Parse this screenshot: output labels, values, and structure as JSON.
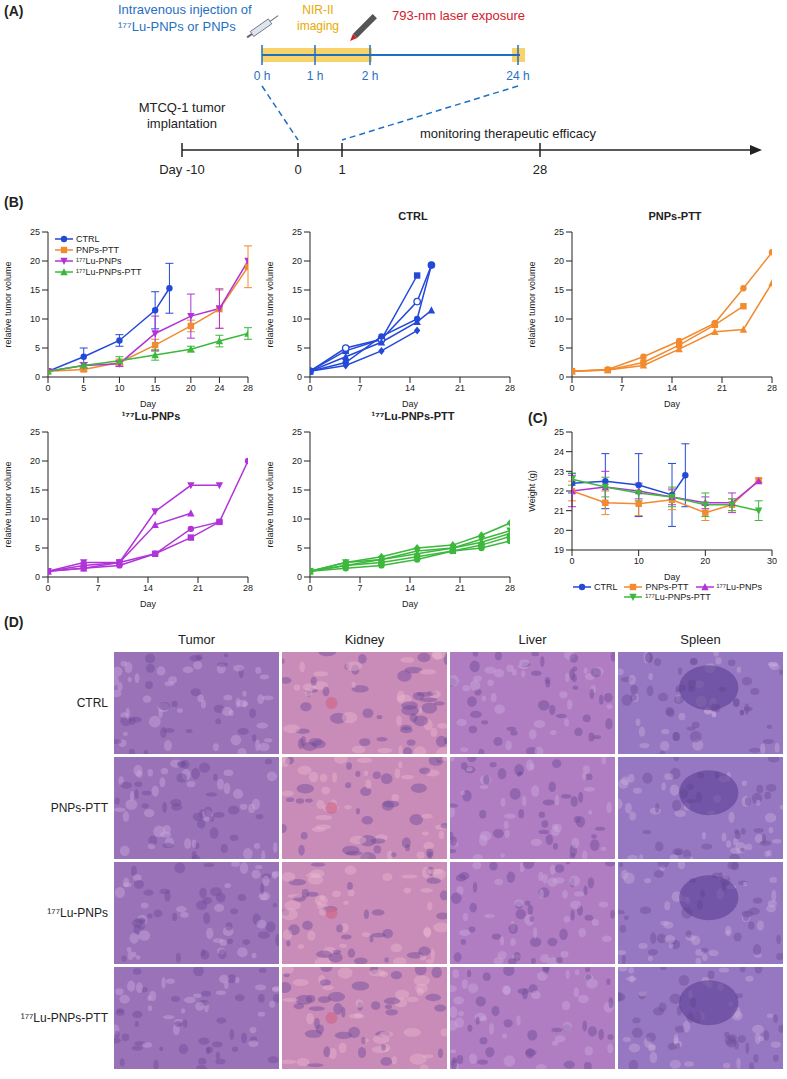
{
  "panel_labels": [
    "(A)",
    "(B)",
    "(C)",
    "(D)"
  ],
  "schematic": {
    "injection": [
      "Intravenous injection of",
      "¹⁷⁷Lu-PNPs or PNPs"
    ],
    "imaging": [
      "NIR-II",
      "imaging"
    ],
    "laser": "793-nm laser exposure",
    "hour_ticks": [
      "0 h",
      "1 h",
      "2 h",
      "24 h"
    ],
    "implantation": [
      "MTCQ-1 tumor",
      "implantation"
    ],
    "day_ticks": [
      "Day -10",
      "0",
      "1",
      "28"
    ],
    "monitoring": "monitoring therapeutic efficacy"
  },
  "chart_data": [
    {
      "type": "line",
      "x_label": "Day",
      "y_label": "relative tumor volume",
      "xlim": [
        0,
        28
      ],
      "xticks": [
        0,
        5,
        10,
        15,
        20,
        24,
        28
      ],
      "ylim": [
        0,
        25
      ],
      "yticks": [
        0,
        5,
        10,
        15,
        20,
        25
      ],
      "grid": false,
      "legend": "top-left",
      "series": [
        {
          "name": "CTRL",
          "color": "#2449d8",
          "marker": "circle",
          "x": [
            0,
            5,
            10,
            15,
            17
          ],
          "values": [
            1,
            3.5,
            6.3,
            11.5,
            15.3
          ],
          "errors": [
            0,
            1.5,
            1,
            3.2,
            4.3
          ]
        },
        {
          "name": "PNPs-PTT",
          "color": "#f28a2e",
          "marker": "square",
          "x": [
            0,
            5,
            10,
            15,
            20,
            24,
            28
          ],
          "values": [
            1,
            1.3,
            2.5,
            5.5,
            8.8,
            11.7,
            19
          ],
          "errors": [
            0,
            0.3,
            0.6,
            1,
            1,
            3.3,
            3.6
          ]
        },
        {
          "name": "¹⁷⁷Lu-PNPs",
          "color": "#b034d8",
          "marker": "triangle_down",
          "x": [
            0,
            5,
            10,
            15,
            20,
            24,
            28
          ],
          "values": [
            1,
            2,
            2.3,
            7.5,
            10.5,
            11.8,
            20
          ],
          "errors": [
            0,
            0.5,
            0.5,
            3,
            3.8,
            3.4,
            0
          ]
        },
        {
          "name": "¹⁷⁷Lu-PNPs-PTT",
          "color": "#3cb83c",
          "marker": "triangle",
          "x": [
            0,
            5,
            10,
            15,
            20,
            24,
            28
          ],
          "values": [
            1,
            2,
            2.8,
            3.8,
            4.8,
            6.2,
            7.5
          ],
          "errors": [
            0,
            0.5,
            0.7,
            0.9,
            0.5,
            1,
            1
          ]
        }
      ]
    },
    {
      "type": "line",
      "title": "CTRL",
      "x_label": "Day",
      "y_label": "relative tumor volume",
      "xlim": [
        0,
        28
      ],
      "xticks": [
        0,
        7,
        14,
        21,
        28
      ],
      "ylim": [
        0,
        25
      ],
      "yticks": [
        0,
        5,
        10,
        15,
        20,
        25
      ],
      "grid": false,
      "series": [
        {
          "color": "#2449d8",
          "marker": "square",
          "x": [
            0,
            5,
            10,
            15
          ],
          "values": [
            1,
            4.5,
            6.5,
            17.5
          ]
        },
        {
          "color": "#2449d8",
          "marker": "open_circle",
          "x": [
            0,
            5,
            10,
            15,
            17
          ],
          "values": [
            1,
            5,
            6.5,
            13,
            19.3
          ]
        },
        {
          "color": "#2449d8",
          "marker": "circle",
          "x": [
            0,
            5,
            10,
            15,
            17
          ],
          "values": [
            1,
            2.5,
            7,
            10,
            19.3
          ]
        },
        {
          "color": "#2449d8",
          "marker": "triangle",
          "x": [
            0,
            5,
            10,
            15,
            17
          ],
          "values": [
            1,
            3.5,
            6,
            9.5,
            11.5
          ]
        },
        {
          "color": "#2449d8",
          "marker": "diamond",
          "x": [
            0,
            5,
            10,
            15
          ],
          "values": [
            1,
            2,
            4.5,
            8
          ]
        }
      ]
    },
    {
      "type": "line",
      "title": "PNPs-PTT",
      "x_label": "Day",
      "y_label": "relative tumor volume",
      "xlim": [
        0,
        28
      ],
      "xticks": [
        0,
        7,
        14,
        21,
        28
      ],
      "ylim": [
        0,
        25
      ],
      "yticks": [
        0,
        5,
        10,
        15,
        20,
        25
      ],
      "grid": false,
      "series": [
        {
          "color": "#f28a2e",
          "marker": "circle",
          "x": [
            0,
            5,
            10,
            15,
            20,
            24,
            28
          ],
          "values": [
            1,
            1.3,
            3.5,
            6.2,
            9.3,
            15.3,
            21.5
          ]
        },
        {
          "color": "#f28a2e",
          "marker": "square",
          "x": [
            0,
            5,
            10,
            15,
            20,
            24
          ],
          "values": [
            1,
            1.2,
            2.5,
            5.5,
            9,
            12.2
          ]
        },
        {
          "color": "#f28a2e",
          "marker": "triangle",
          "x": [
            0,
            5,
            10,
            15,
            20,
            24,
            28
          ],
          "values": [
            1,
            1.2,
            2,
            4.8,
            7.8,
            8.2,
            16.2
          ]
        }
      ]
    },
    {
      "type": "line",
      "title": "¹⁷⁷Lu-PNPs",
      "x_label": "Day",
      "y_label": "relative tumor volume",
      "xlim": [
        0,
        28
      ],
      "xticks": [
        0,
        7,
        14,
        21,
        28
      ],
      "ylim": [
        0,
        25
      ],
      "yticks": [
        0,
        5,
        10,
        15,
        20,
        25
      ],
      "grid": false,
      "series": [
        {
          "color": "#b034d8",
          "marker": "circle",
          "x": [
            0,
            5,
            10,
            15,
            20,
            24,
            28
          ],
          "values": [
            1,
            1.5,
            2,
            4,
            8.3,
            9.5,
            20
          ]
        },
        {
          "color": "#b034d8",
          "marker": "square",
          "x": [
            0,
            5,
            10,
            15,
            20,
            24
          ],
          "values": [
            1,
            2,
            2.5,
            4,
            6.8,
            9.5
          ]
        },
        {
          "color": "#b034d8",
          "marker": "triangle_down",
          "x": [
            0,
            5,
            10,
            15,
            20,
            24
          ],
          "values": [
            1,
            2.5,
            2.5,
            11.3,
            15.8,
            15.8
          ]
        },
        {
          "color": "#b034d8",
          "marker": "triangle",
          "x": [
            0,
            5,
            10,
            15,
            20
          ],
          "values": [
            1,
            1.5,
            2.5,
            9,
            11
          ]
        }
      ]
    },
    {
      "type": "line",
      "title": "¹⁷⁷Lu-PNPs-PTT",
      "x_label": "Day",
      "y_label": "relative tumor volume",
      "xlim": [
        0,
        28
      ],
      "xticks": [
        0,
        7,
        14,
        21,
        28
      ],
      "ylim": [
        0,
        25
      ],
      "yticks": [
        0,
        5,
        10,
        15,
        20,
        25
      ],
      "grid": false,
      "series": [
        {
          "color": "#3cb83c",
          "marker": "circle",
          "x": [
            0,
            5,
            10,
            15,
            20,
            24,
            28
          ],
          "values": [
            1,
            1.5,
            2,
            3,
            4.5,
            5,
            6.2
          ]
        },
        {
          "color": "#3cb83c",
          "marker": "square",
          "x": [
            0,
            5,
            10,
            15,
            20,
            24,
            28
          ],
          "values": [
            1,
            2,
            2.5,
            3.5,
            4.5,
            5.5,
            7
          ]
        },
        {
          "color": "#3cb83c",
          "marker": "triangle",
          "x": [
            0,
            5,
            10,
            15,
            20,
            24,
            28
          ],
          "values": [
            1,
            2,
            3,
            4,
            5,
            6,
            7.5
          ]
        },
        {
          "color": "#3cb83c",
          "marker": "triangle_down",
          "x": [
            0,
            5,
            10,
            15,
            20,
            24,
            28
          ],
          "values": [
            1,
            2.5,
            3,
            4.5,
            5,
            6.5,
            8
          ]
        },
        {
          "color": "#3cb83c",
          "marker": "diamond",
          "x": [
            0,
            5,
            10,
            15,
            20,
            24,
            28
          ],
          "values": [
            1,
            2.5,
            3.5,
            5,
            5.5,
            7.2,
            9.3
          ]
        }
      ]
    },
    {
      "type": "line",
      "x_label": "Day",
      "y_label": "Weight (g)",
      "xlim": [
        0,
        30
      ],
      "xticks": [
        0,
        10,
        20,
        30
      ],
      "ylim": [
        19,
        25
      ],
      "yticks": [
        19,
        20,
        21,
        22,
        23,
        24,
        25
      ],
      "grid": false,
      "legend": "bottom",
      "series": [
        {
          "name": "CTRL",
          "color": "#2449d8",
          "marker": "circle",
          "x": [
            0,
            5,
            10,
            15,
            17
          ],
          "values": [
            22.4,
            22.5,
            22.3,
            21.8,
            22.8
          ],
          "errors": [
            0.5,
            1.4,
            1.6,
            1.6,
            1.6
          ]
        },
        {
          "name": "PNPs-PTT",
          "color": "#f28a2e",
          "marker": "square",
          "x": [
            0,
            5,
            10,
            15,
            20,
            24,
            28
          ],
          "values": [
            22,
            21.4,
            21.35,
            21.55,
            20.9,
            21.3,
            22.55
          ],
          "errors": [
            0.5,
            0.6,
            0.6,
            0.5,
            0.4,
            0.3,
            0.1
          ]
        },
        {
          "name": "¹⁷⁷Lu-PNPs",
          "color": "#b034d8",
          "marker": "triangle",
          "x": [
            0,
            5,
            10,
            15,
            20,
            24,
            28
          ],
          "values": [
            22,
            22.2,
            22,
            21.7,
            21.4,
            21.4,
            22.5
          ],
          "errors": [
            0.8,
            0.8,
            0.4,
            0.4,
            0.3,
            0.5,
            0
          ]
        },
        {
          "name": "¹⁷⁷Lu-PNPs-PTT",
          "color": "#3cb83c",
          "marker": "triangle_down",
          "x": [
            0,
            5,
            10,
            15,
            20,
            24,
            28
          ],
          "values": [
            22.6,
            22.2,
            21.9,
            21.7,
            21.3,
            21.3,
            21
          ],
          "errors": [
            0.3,
            0.5,
            0.4,
            0.5,
            0.6,
            0.3,
            0.5
          ]
        }
      ]
    }
  ],
  "histology": {
    "columns": [
      "Tumor",
      "Kidney",
      "Liver",
      "Spleen"
    ],
    "rows": [
      "CTRL",
      "PNPs-PTT",
      "¹⁷⁷Lu-PNPs",
      "¹⁷⁷Lu-PNPs-PTT"
    ]
  }
}
